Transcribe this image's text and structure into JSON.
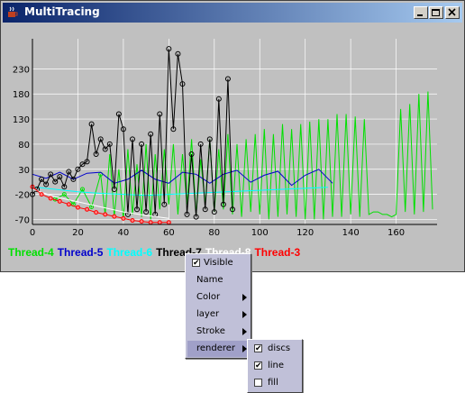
{
  "window": {
    "title": "MultiTracing"
  },
  "chart_data": {
    "type": "line",
    "xlim": [
      0,
      178
    ],
    "ylim": [
      -80,
      290
    ],
    "x_ticks": [
      0,
      20,
      40,
      60,
      80,
      100,
      120,
      140,
      160
    ],
    "y_ticks": [
      -70,
      -20,
      30,
      80,
      130,
      180,
      230
    ],
    "series": [
      {
        "name": "Thread-4",
        "color": "#00e000",
        "x": [
          10,
          14,
          18,
          22,
          26,
          30,
          32,
          34,
          36,
          38,
          40,
          42,
          44,
          46,
          48,
          50,
          52,
          54,
          56,
          58,
          60,
          62,
          64,
          66,
          68,
          70,
          72,
          74,
          76,
          78,
          80,
          82,
          84,
          86,
          88,
          90,
          92,
          94,
          96,
          98,
          100,
          102,
          104,
          106,
          108,
          110,
          112,
          114,
          116,
          118,
          120,
          122,
          124,
          126,
          128,
          130,
          132,
          134,
          136,
          138,
          140,
          142,
          144,
          146,
          148,
          150,
          152,
          154,
          156,
          158,
          160,
          162,
          164,
          166,
          168,
          170,
          172,
          174,
          176
        ],
        "values": [
          -30,
          -20,
          -40,
          -10,
          -45,
          20,
          -60,
          60,
          -65,
          30,
          -70,
          70,
          -60,
          40,
          -65,
          80,
          -70,
          60,
          -50,
          70,
          -40,
          80,
          -60,
          60,
          -40,
          90,
          -60,
          50,
          -40,
          90,
          -55,
          70,
          -50,
          100,
          -60,
          80,
          -65,
          90,
          -55,
          100,
          -60,
          110,
          -70,
          100,
          -65,
          120,
          -60,
          110,
          -65,
          120,
          -70,
          125,
          -70,
          130,
          -70,
          130,
          -65,
          140,
          -65,
          140,
          -60,
          135,
          -65,
          130,
          -60,
          -55,
          -55,
          -60,
          -60,
          -65,
          -60,
          150,
          -55,
          160,
          -60,
          180,
          -55,
          185,
          -50
        ]
      },
      {
        "name": "Thread-5",
        "color": "#0000cc",
        "x": [
          0,
          6,
          12,
          18,
          24,
          30,
          36,
          42,
          48,
          54,
          60,
          66,
          72,
          78,
          84,
          90,
          96,
          102,
          108,
          114,
          120,
          126,
          132
        ],
        "values": [
          20,
          12,
          24,
          10,
          22,
          24,
          2,
          10,
          28,
          10,
          2,
          24,
          20,
          2,
          20,
          28,
          4,
          18,
          26,
          -2,
          18,
          30,
          2
        ]
      },
      {
        "name": "Thread-6",
        "color": "#00ffff",
        "x": [
          0,
          10,
          20,
          30,
          40,
          50,
          60,
          70,
          80,
          90,
          100,
          110,
          120,
          130
        ],
        "values": [
          -5,
          -10,
          -15,
          -18,
          -20,
          -22,
          -20,
          -18,
          -16,
          -14,
          -12,
          -10,
          -8,
          -6
        ]
      },
      {
        "name": "Thread-7",
        "color": "#000000",
        "x": [
          0,
          2,
          4,
          6,
          8,
          10,
          12,
          14,
          16,
          18,
          20,
          22,
          24,
          26,
          28,
          30,
          32,
          34,
          36,
          38,
          40,
          42,
          44,
          46,
          48,
          50,
          52,
          54,
          56,
          58,
          60,
          62,
          64,
          66,
          68,
          70,
          72,
          74,
          76,
          78,
          80,
          82,
          84,
          86,
          88
        ],
        "values": [
          -20,
          -10,
          10,
          0,
          20,
          5,
          15,
          -5,
          25,
          10,
          30,
          40,
          45,
          120,
          60,
          90,
          70,
          80,
          -10,
          140,
          110,
          -60,
          90,
          -50,
          80,
          -55,
          100,
          -60,
          140,
          -40,
          270,
          110,
          260,
          200,
          -60,
          60,
          -65,
          80,
          -50,
          90,
          -55,
          170,
          -40,
          210,
          -50
        ]
      },
      {
        "name": "Thread-8",
        "color": "#ffffff",
        "x": [
          0,
          10,
          20,
          30,
          40,
          50,
          60
        ],
        "values": [
          -10,
          -25,
          -35,
          -45,
          -55,
          -62,
          -68
        ]
      },
      {
        "name": "Thread-3",
        "color": "#ff0000",
        "x": [
          0,
          4,
          8,
          12,
          16,
          20,
          24,
          28,
          32,
          36,
          40,
          44,
          48,
          52,
          56,
          60
        ],
        "values": [
          -5,
          -20,
          -28,
          -34,
          -40,
          -46,
          -50,
          -56,
          -60,
          -64,
          -68,
          -72,
          -74,
          -76,
          -76,
          -76
        ]
      }
    ]
  },
  "context_menu": {
    "items": [
      {
        "label": "Visible",
        "checkbox": true,
        "checked": true
      },
      {
        "label": "Name"
      },
      {
        "label": "Color",
        "submenu": true
      },
      {
        "label": "layer",
        "submenu": true
      },
      {
        "label": "Stroke",
        "submenu": true
      },
      {
        "label": "renderer",
        "submenu": true,
        "selected": true
      }
    ]
  },
  "renderer_submenu": {
    "items": [
      {
        "label": "discs",
        "checked": true
      },
      {
        "label": "line",
        "checked": true
      },
      {
        "label": "fill",
        "checked": false
      }
    ]
  },
  "legend_colors": {
    "Thread-4": "#00e000",
    "Thread-5": "#0000cc",
    "Thread-6": "#00ffff",
    "Thread-7": "#000000",
    "Thread-8": "#ffffff",
    "Thread-3": "#ff0000"
  }
}
